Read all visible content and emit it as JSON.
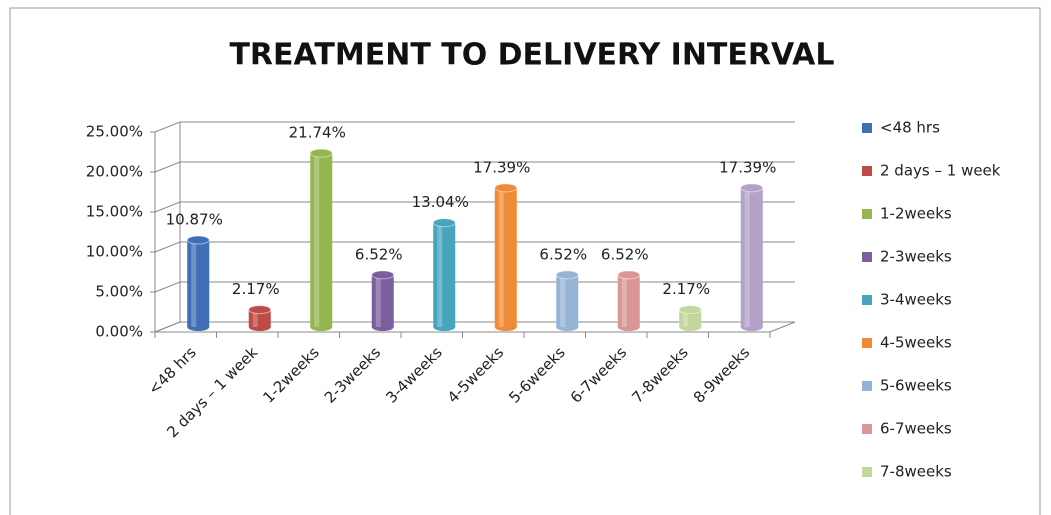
{
  "chart_data": {
    "type": "bar",
    "title": "TREATMENT TO DELIVERY INTERVAL",
    "categories": [
      "<48 hrs",
      "2 days – 1 week",
      "1-2weeks",
      "2-3weeks",
      "3-4weeks",
      "4-5weeks",
      "5-6weeks",
      "6-7weeks",
      "7-8weeks",
      "8-9weeks"
    ],
    "values": [
      10.87,
      2.17,
      21.74,
      6.52,
      13.04,
      17.39,
      6.52,
      6.52,
      2.17,
      17.39
    ],
    "value_labels": [
      "10.87%",
      "2.17%",
      "21.74%",
      "6.52%",
      "13.04%",
      "17.39%",
      "6.52%",
      "6.52%",
      "2.17%",
      "17.39%"
    ],
    "colors": [
      "#3f6fb5",
      "#be4b48",
      "#93b64f",
      "#7a5e9e",
      "#47a4bd",
      "#f08b35",
      "#95b3d7",
      "#d99694",
      "#c3d69b",
      "#b3a2c7"
    ],
    "ylim": [
      0,
      25
    ],
    "yticks": [
      {
        "value": 0,
        "label": "0.00%"
      },
      {
        "value": 5,
        "label": "5.00%"
      },
      {
        "value": 10,
        "label": "10.00%"
      },
      {
        "value": 15,
        "label": "15.00%"
      },
      {
        "value": 20,
        "label": "20.00%"
      },
      {
        "value": 25,
        "label": "25.00%"
      }
    ],
    "grid": true,
    "legend": "right"
  }
}
